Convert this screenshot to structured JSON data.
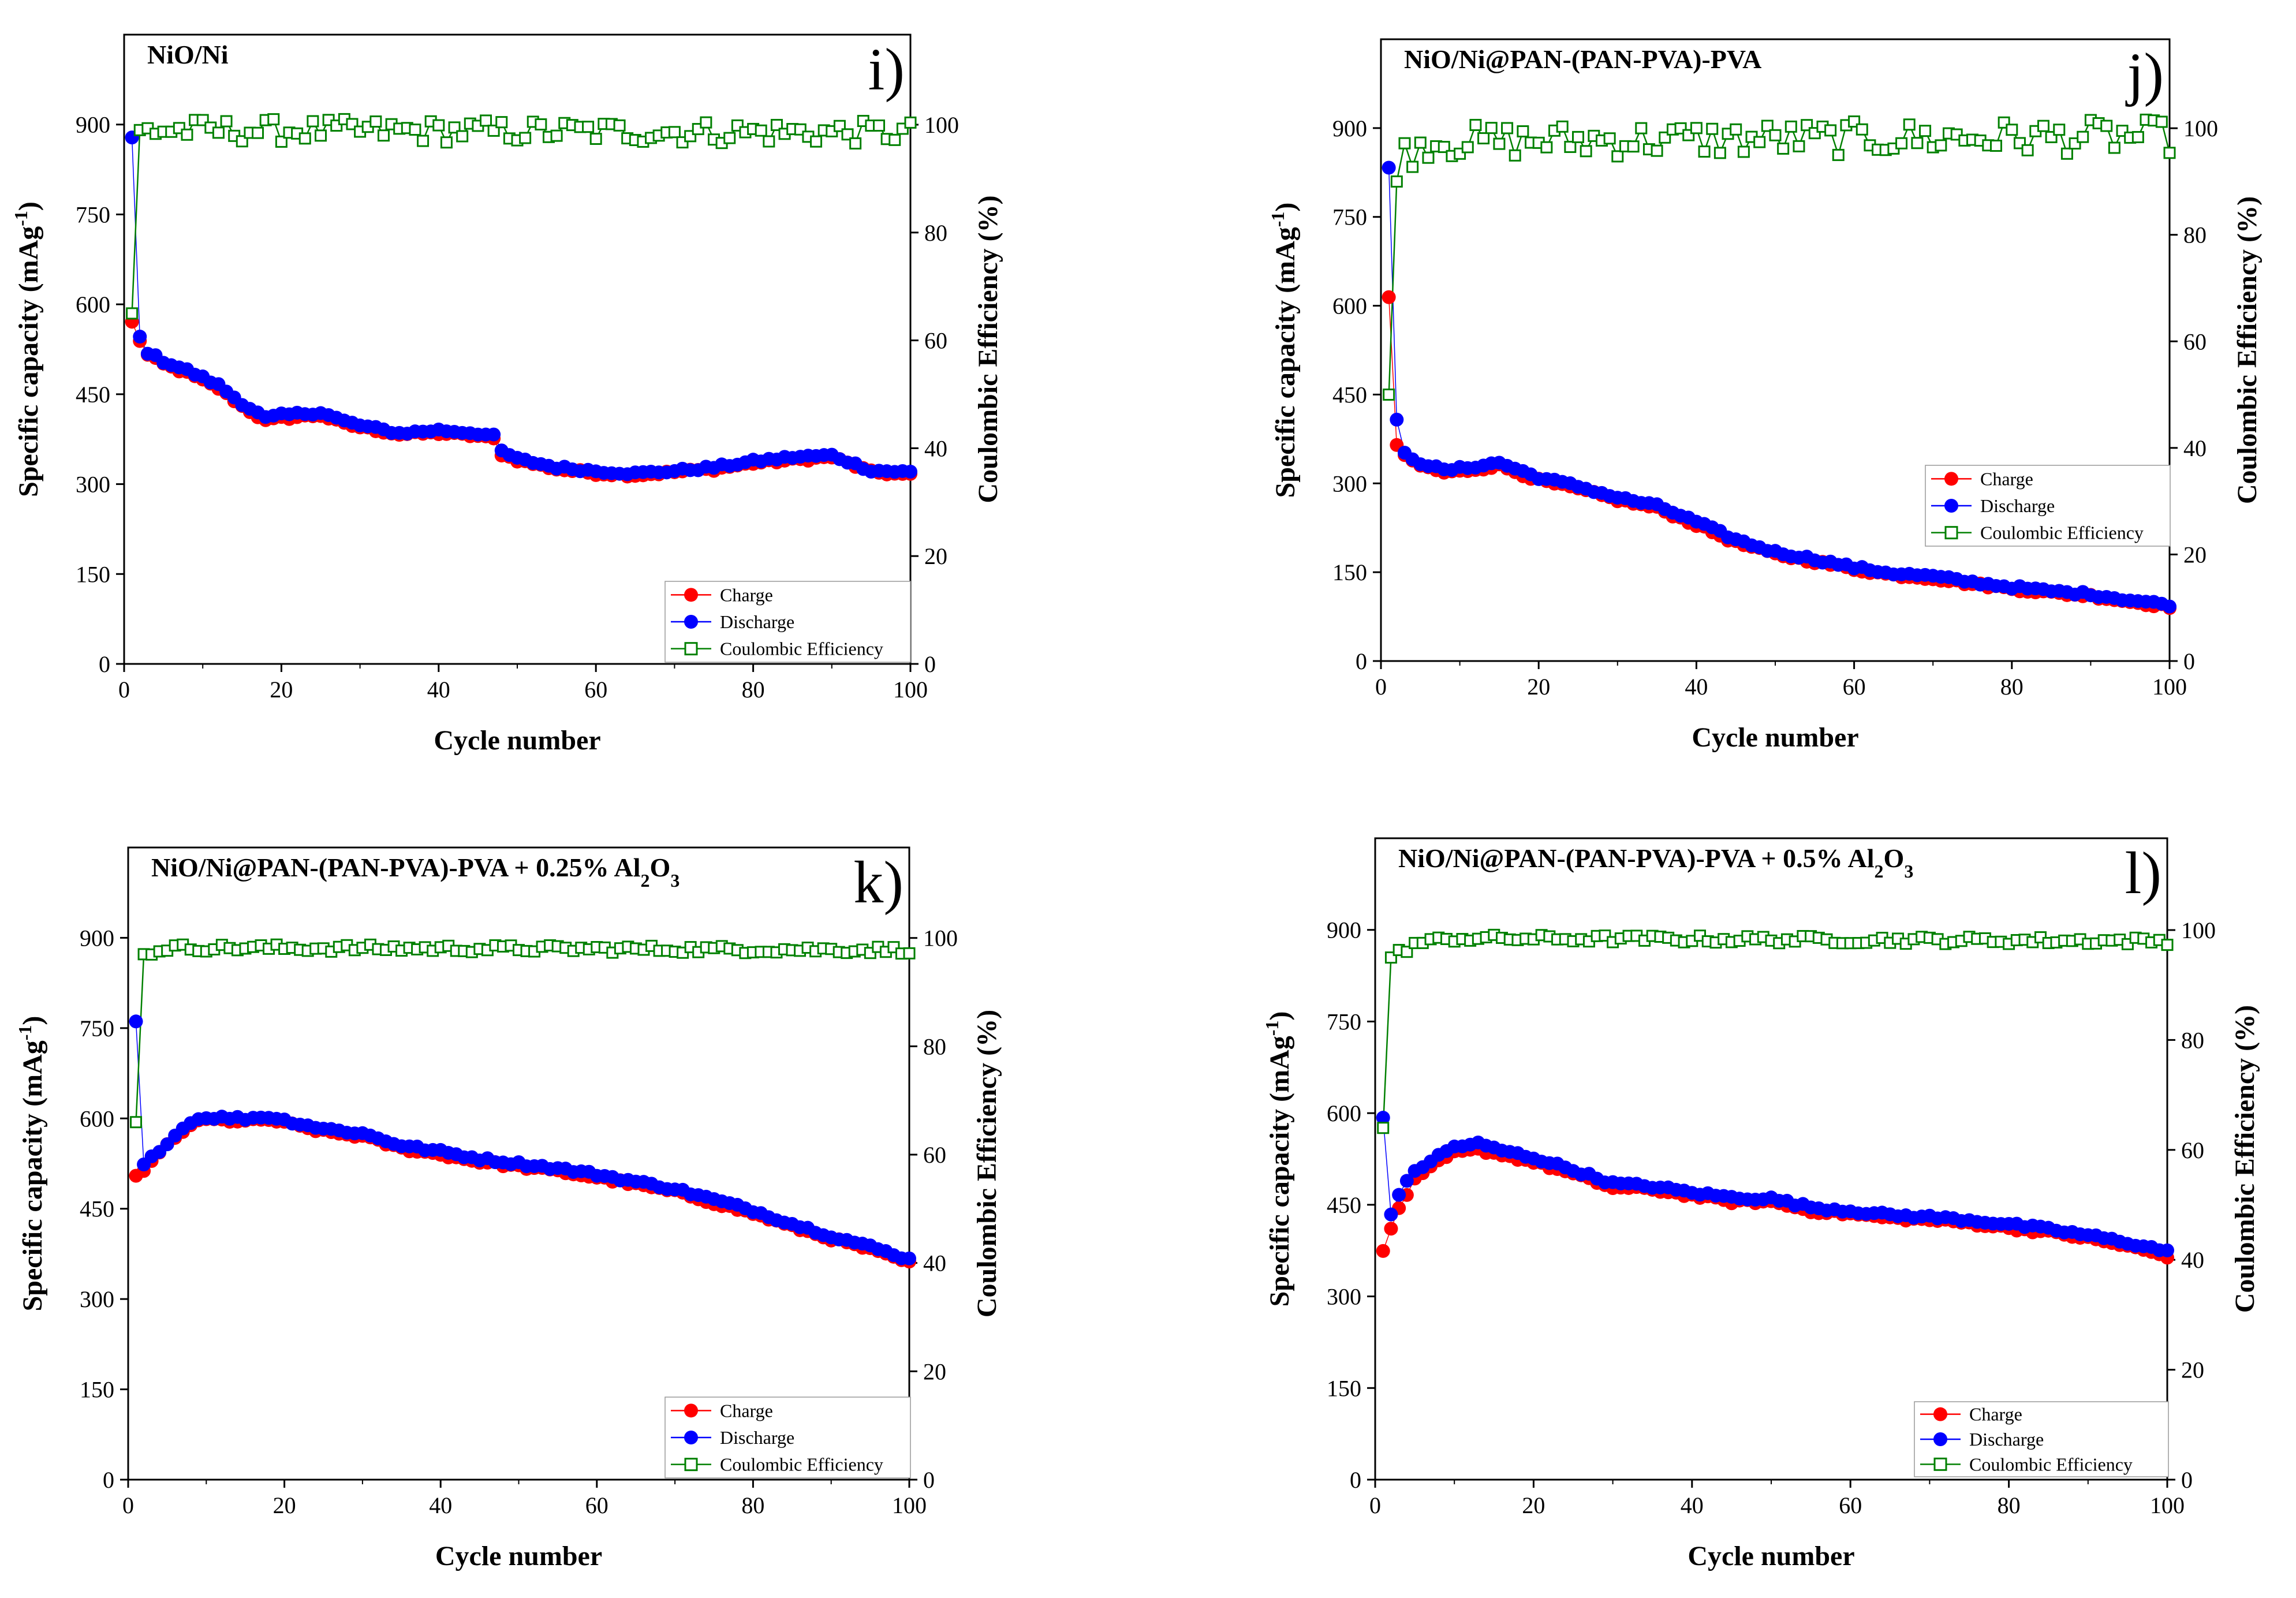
{
  "colors": {
    "charge": "#ff0000",
    "discharge": "#0000ff",
    "ce": "#008000",
    "axis": "#000000"
  },
  "chart_data": [
    {
      "type": "scatter",
      "panel": "i)",
      "title": "NiO/Ni",
      "xlabel": "Cycle number",
      "ylabel": "Specific capacity (mAg-1)",
      "ylabel_main": "Specific capacity (mAg",
      "ylabel_sup": "-1",
      "ylabel_close": ")",
      "y2label": "Coulombic Efficiency (%)",
      "xlim": [
        0,
        100
      ],
      "ylim": [
        0,
        1050
      ],
      "y2lim": [
        0,
        116.7
      ],
      "x_ticks": [
        0,
        20,
        40,
        60,
        80,
        100
      ],
      "y_ticks": [
        0,
        150,
        300,
        450,
        600,
        750,
        900
      ],
      "y2_ticks": [
        0,
        20,
        40,
        60,
        80,
        100
      ],
      "legend": [
        "Charge",
        "Discharge",
        "Coulombic Efficiency"
      ],
      "legend_position": "bottom-right",
      "anchors": {
        "charge": [
          [
            1,
            570
          ],
          [
            2,
            540
          ],
          [
            3,
            515
          ],
          [
            5,
            500
          ],
          [
            8,
            485
          ],
          [
            12,
            460
          ],
          [
            15,
            430
          ],
          [
            18,
            405
          ],
          [
            20,
            410
          ],
          [
            25,
            415
          ],
          [
            28,
            400
          ],
          [
            30,
            395
          ],
          [
            35,
            383
          ],
          [
            40,
            385
          ],
          [
            45,
            380
          ],
          [
            47,
            375
          ],
          [
            48,
            350
          ],
          [
            50,
            340
          ],
          [
            55,
            325
          ],
          [
            60,
            318
          ],
          [
            65,
            315
          ],
          [
            70,
            320
          ],
          [
            75,
            325
          ],
          [
            80,
            335
          ],
          [
            85,
            340
          ],
          [
            90,
            345
          ],
          [
            92,
            335
          ],
          [
            95,
            320
          ],
          [
            100,
            315
          ]
        ],
        "discharge": [
          [
            1,
            878
          ],
          [
            2,
            545
          ],
          [
            3,
            520
          ],
          [
            5,
            505
          ],
          [
            8,
            490
          ],
          [
            12,
            465
          ],
          [
            15,
            435
          ],
          [
            18,
            410
          ],
          [
            20,
            415
          ],
          [
            25,
            420
          ],
          [
            28,
            405
          ],
          [
            30,
            398
          ],
          [
            35,
            385
          ],
          [
            40,
            390
          ],
          [
            45,
            385
          ],
          [
            47,
            380
          ],
          [
            48,
            355
          ],
          [
            50,
            342
          ],
          [
            55,
            328
          ],
          [
            60,
            322
          ],
          [
            65,
            318
          ],
          [
            70,
            322
          ],
          [
            75,
            328
          ],
          [
            80,
            338
          ],
          [
            85,
            345
          ],
          [
            90,
            348
          ],
          [
            92,
            338
          ],
          [
            95,
            323
          ],
          [
            100,
            320
          ]
        ],
        "ce": [
          [
            1,
            65
          ],
          [
            2,
            99
          ],
          [
            100,
            98.5
          ]
        ]
      },
      "ce_noise": 2.2
    },
    {
      "type": "scatter",
      "panel": "j)",
      "title": "NiO/Ni@PAN-(PAN-PVA)-PVA",
      "xlabel": "Cycle number",
      "ylabel": "Specific capacity (mAg-1)",
      "ylabel_main": "Specific capacity (mAg",
      "ylabel_sup": "-1",
      "ylabel_close": ")",
      "y2label": "Coulombic Efficiency (%)",
      "xlim": [
        0,
        100
      ],
      "ylim": [
        0,
        1050
      ],
      "y2lim": [
        0,
        116.7
      ],
      "x_ticks": [
        0,
        20,
        40,
        60,
        80,
        100
      ],
      "y_ticks": [
        0,
        150,
        300,
        450,
        600,
        750,
        900
      ],
      "y2_ticks": [
        0,
        20,
        40,
        60,
        80,
        100
      ],
      "legend": [
        "Charge",
        "Discharge",
        "Coulombic Efficiency"
      ],
      "legend_position": "right",
      "anchors": {
        "charge": [
          [
            1,
            615
          ],
          [
            2,
            365
          ],
          [
            3,
            345
          ],
          [
            5,
            330
          ],
          [
            8,
            318
          ],
          [
            10,
            320
          ],
          [
            15,
            330
          ],
          [
            20,
            305
          ],
          [
            25,
            290
          ],
          [
            30,
            272
          ],
          [
            35,
            258
          ],
          [
            40,
            230
          ],
          [
            45,
            200
          ],
          [
            50,
            180
          ],
          [
            55,
            168
          ],
          [
            60,
            155
          ],
          [
            65,
            145
          ],
          [
            70,
            140
          ],
          [
            75,
            130
          ],
          [
            80,
            122
          ],
          [
            85,
            115
          ],
          [
            90,
            110
          ],
          [
            95,
            100
          ],
          [
            100,
            92
          ]
        ],
        "discharge": [
          [
            1,
            833
          ],
          [
            2,
            405
          ],
          [
            3,
            350
          ],
          [
            5,
            335
          ],
          [
            8,
            322
          ],
          [
            10,
            325
          ],
          [
            15,
            335
          ],
          [
            20,
            310
          ],
          [
            25,
            295
          ],
          [
            30,
            276
          ],
          [
            35,
            262
          ],
          [
            40,
            235
          ],
          [
            45,
            205
          ],
          [
            50,
            184
          ],
          [
            55,
            172
          ],
          [
            60,
            158
          ],
          [
            65,
            148
          ],
          [
            70,
            143
          ],
          [
            75,
            133
          ],
          [
            80,
            125
          ],
          [
            85,
            118
          ],
          [
            90,
            113
          ],
          [
            95,
            103
          ],
          [
            100,
            95
          ]
        ],
        "ce": [
          [
            1,
            50
          ],
          [
            2,
            90
          ],
          [
            3,
            95
          ],
          [
            6,
            97.5
          ],
          [
            100,
            98.5
          ]
        ]
      },
      "ce_noise": 3.2
    },
    {
      "type": "scatter",
      "panel": "k)",
      "title": "NiO/Ni@PAN-(PAN-PVA)-PVA + 0.25% Al2O3",
      "title_main": "NiO/Ni@PAN-(PAN-PVA)-PVA + 0.25% Al",
      "title_sub": "2",
      "title_end": "O",
      "title_sub2": "3",
      "xlabel": "Cycle number",
      "ylabel": "Specific capacity (mAg-1)",
      "ylabel_main": "Specific capacity (mAg",
      "ylabel_sup": "-1",
      "ylabel_close": ")",
      "y2label": "Coulombic Efficiency (%)",
      "xlim": [
        0,
        100
      ],
      "ylim": [
        0,
        1050
      ],
      "y2lim": [
        0,
        116.7
      ],
      "x_ticks": [
        0,
        20,
        40,
        60,
        80,
        100
      ],
      "y_ticks": [
        0,
        150,
        300,
        450,
        600,
        750,
        900
      ],
      "y2_ticks": [
        0,
        20,
        40,
        60,
        80,
        100
      ],
      "legend": [
        "Charge",
        "Discharge",
        "Coulombic Efficiency"
      ],
      "legend_position": "bottom-right",
      "anchors": {
        "charge": [
          [
            1,
            502
          ],
          [
            2,
            515
          ],
          [
            5,
            555
          ],
          [
            8,
            590
          ],
          [
            10,
            598
          ],
          [
            15,
            595
          ],
          [
            18,
            598
          ],
          [
            20,
            592
          ],
          [
            25,
            578
          ],
          [
            30,
            570
          ],
          [
            35,
            550
          ],
          [
            40,
            540
          ],
          [
            45,
            528
          ],
          [
            50,
            520
          ],
          [
            55,
            512
          ],
          [
            60,
            502
          ],
          [
            65,
            490
          ],
          [
            70,
            478
          ],
          [
            75,
            460
          ],
          [
            80,
            442
          ],
          [
            85,
            420
          ],
          [
            90,
            400
          ],
          [
            95,
            382
          ],
          [
            100,
            360
          ]
        ],
        "discharge": [
          [
            1,
            760
          ],
          [
            2,
            522
          ],
          [
            5,
            560
          ],
          [
            8,
            595
          ],
          [
            10,
            602
          ],
          [
            15,
            600
          ],
          [
            18,
            603
          ],
          [
            20,
            597
          ],
          [
            25,
            583
          ],
          [
            30,
            575
          ],
          [
            35,
            555
          ],
          [
            40,
            545
          ],
          [
            45,
            533
          ],
          [
            50,
            525
          ],
          [
            55,
            517
          ],
          [
            60,
            507
          ],
          [
            65,
            495
          ],
          [
            70,
            483
          ],
          [
            75,
            465
          ],
          [
            80,
            447
          ],
          [
            85,
            425
          ],
          [
            90,
            405
          ],
          [
            95,
            387
          ],
          [
            100,
            366
          ]
        ],
        "ce": [
          [
            1,
            66
          ],
          [
            2,
            97
          ],
          [
            5,
            98.2
          ],
          [
            100,
            97.8
          ]
        ]
      },
      "ce_noise": 0.7
    },
    {
      "type": "scatter",
      "panel": "l)",
      "title": "NiO/Ni@PAN-(PAN-PVA)-PVA + 0.5% Al2O3",
      "title_main": "NiO/Ni@PAN-(PAN-PVA)-PVA + 0.5% Al",
      "title_sub": "2",
      "title_end": "O",
      "title_sub2": "3",
      "xlabel": "Cycle number",
      "ylabel": "Specific capacity (mAg-1)",
      "ylabel_main": "Specific capacity (mAg",
      "ylabel_sup": "-1",
      "ylabel_close": ")",
      "y2label": "Coulombic Efficiency (%)",
      "xlim": [
        0,
        100
      ],
      "ylim": [
        0,
        1050
      ],
      "y2lim": [
        0,
        116.7
      ],
      "x_ticks": [
        0,
        20,
        40,
        60,
        80,
        100
      ],
      "y_ticks": [
        0,
        150,
        300,
        450,
        600,
        750,
        900
      ],
      "y2_ticks": [
        0,
        20,
        40,
        60,
        80,
        100
      ],
      "legend": [
        "Charge",
        "Discharge",
        "Coulombic Efficiency"
      ],
      "legend_position": "bottom-right",
      "anchors": {
        "charge": [
          [
            1,
            372
          ],
          [
            2,
            410
          ],
          [
            3,
            445
          ],
          [
            5,
            490
          ],
          [
            8,
            520
          ],
          [
            10,
            535
          ],
          [
            13,
            540
          ],
          [
            15,
            535
          ],
          [
            20,
            520
          ],
          [
            25,
            500
          ],
          [
            30,
            478
          ],
          [
            35,
            475
          ],
          [
            40,
            465
          ],
          [
            45,
            455
          ],
          [
            50,
            455
          ],
          [
            55,
            440
          ],
          [
            60,
            435
          ],
          [
            65,
            428
          ],
          [
            70,
            425
          ],
          [
            75,
            420
          ],
          [
            80,
            412
          ],
          [
            85,
            405
          ],
          [
            90,
            395
          ],
          [
            95,
            382
          ],
          [
            100,
            366
          ]
        ],
        "discharge": [
          [
            1,
            590
          ],
          [
            2,
            435
          ],
          [
            3,
            468
          ],
          [
            5,
            505
          ],
          [
            8,
            530
          ],
          [
            10,
            545
          ],
          [
            13,
            550
          ],
          [
            15,
            542
          ],
          [
            20,
            527
          ],
          [
            25,
            507
          ],
          [
            30,
            485
          ],
          [
            35,
            480
          ],
          [
            40,
            470
          ],
          [
            45,
            462
          ],
          [
            50,
            460
          ],
          [
            55,
            446
          ],
          [
            60,
            440
          ],
          [
            65,
            433
          ],
          [
            70,
            430
          ],
          [
            75,
            425
          ],
          [
            80,
            418
          ],
          [
            85,
            410
          ],
          [
            90,
            400
          ],
          [
            95,
            388
          ],
          [
            100,
            374
          ]
        ],
        "ce": [
          [
            1,
            64
          ],
          [
            2,
            95
          ],
          [
            5,
            97.5
          ],
          [
            10,
            98.5
          ],
          [
            100,
            98
          ]
        ]
      },
      "ce_noise": 0.7
    }
  ]
}
